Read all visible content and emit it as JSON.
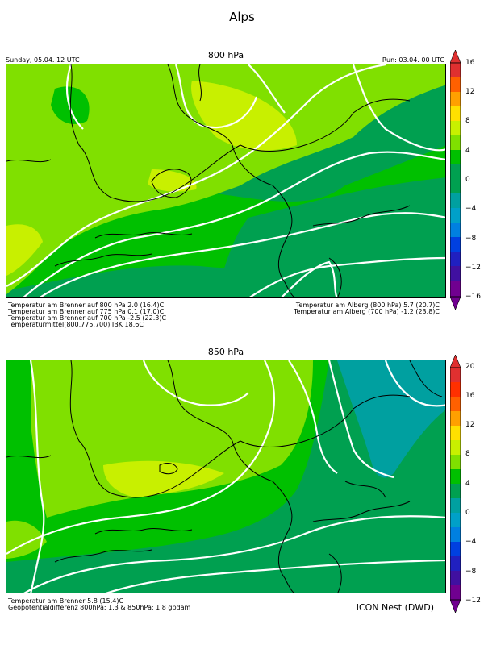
{
  "figure_title": "Alps",
  "panels": [
    {
      "level_title": "800 hPa",
      "valid_time": "Sunday, 05.04. 12 UTC",
      "run_time": "Run: 03.04. 00 UTC",
      "colorbar_ticks": [
        "16",
        "12",
        "8",
        "4",
        "0",
        "−4",
        "−8",
        "−12",
        "−16"
      ],
      "notes_left": [
        "Temperatur am Brenner auf 800 hPa 2.0 (16.4)C",
        "Temperatur am Brenner auf 775 hPa 0.1 (17.0)C",
        "Temperatur am Brenner auf 700 hPa -2.5 (22.3)C",
        "Temperaturmittel(800,775,700) IBK 18.6C"
      ],
      "notes_right": [
        "Temperatur am Alberg (800 hPa) 5.7 (20.7)C",
        "Temperatur am Alberg (700 hPa) -1.2 (23.8)C"
      ]
    },
    {
      "level_title": "850 hPa",
      "colorbar_ticks": [
        "20",
        "16",
        "12",
        "8",
        "4",
        "0",
        "−4",
        "−8",
        "−12"
      ],
      "notes_left": [
        "Temperatur am Brenner 5.8 (15.4)C",
        "Geopotentialdifferenz 800hPa: 1.3 & 850hPa: 1.8 gpdam"
      ],
      "credit": "ICON Nest (DWD)"
    }
  ],
  "colors": {
    "dark_green": "#00a050",
    "green": "#00c000",
    "light_green": "#80e000",
    "yellow_green": "#c8f000",
    "teal": "#00a0a0",
    "isotherm": "#ffffff",
    "border": "#000000"
  }
}
